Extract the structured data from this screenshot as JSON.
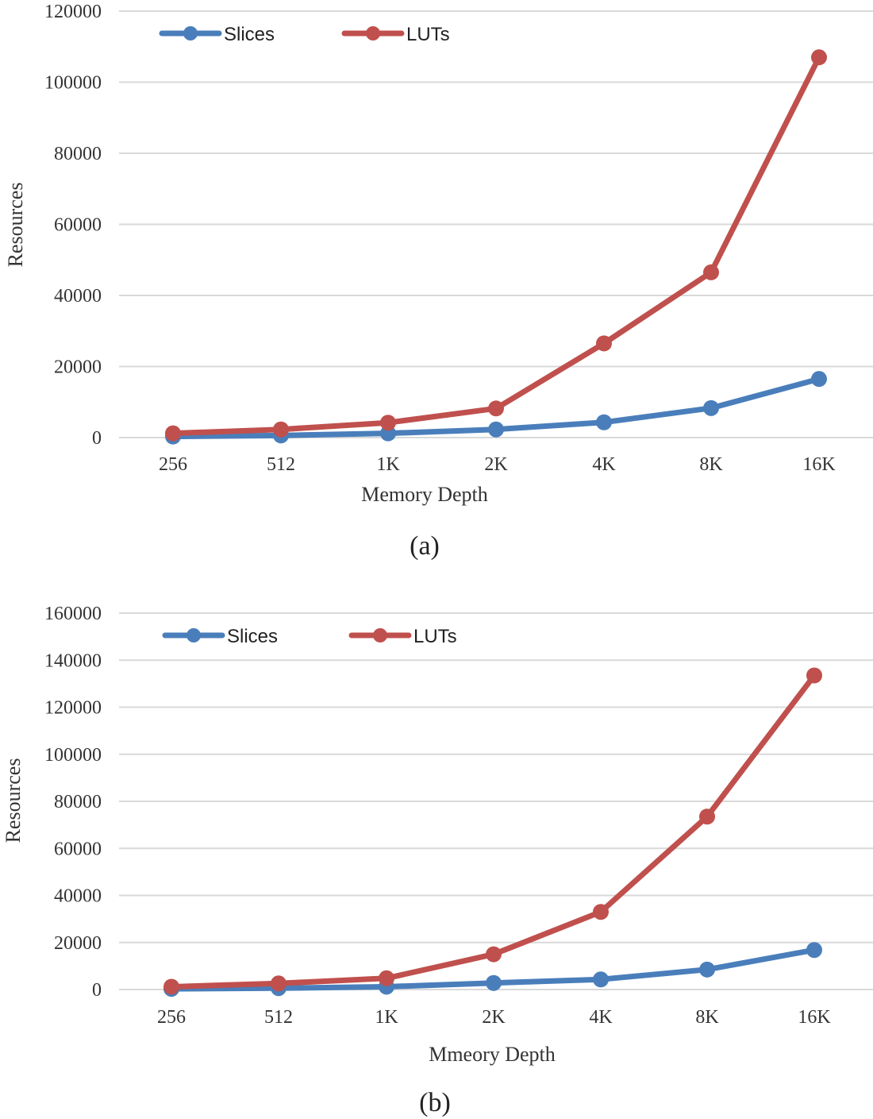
{
  "chart_data": [
    {
      "type": "line",
      "title": "",
      "caption": "(a)",
      "xlabel": "Memory Depth",
      "ylabel": "Resources",
      "categories": [
        "256",
        "512",
        "1K",
        "2K",
        "4K",
        "8K",
        "16K"
      ],
      "ylim": [
        0,
        120000
      ],
      "yticks": [
        "0",
        "20000",
        "40000",
        "60000",
        "80000",
        "100000",
        "120000"
      ],
      "legend_position": "top-left",
      "grid": true,
      "series": [
        {
          "name": "Slices",
          "color": "#4a7ebb",
          "values": [
            300,
            600,
            1200,
            2300,
            4300,
            8300,
            16500
          ]
        },
        {
          "name": "LUTs",
          "color": "#c0504d",
          "values": [
            1200,
            2300,
            4200,
            8200,
            26500,
            46500,
            107000
          ]
        }
      ]
    },
    {
      "type": "line",
      "title": "",
      "caption": "(b)",
      "xlabel": "Mmeory Depth",
      "ylabel": "Resources",
      "categories": [
        "256",
        "512",
        "1K",
        "2K",
        "4K",
        "8K",
        "16K"
      ],
      "ylim": [
        0,
        160000
      ],
      "yticks": [
        "0",
        "20000",
        "40000",
        "60000",
        "80000",
        "100000",
        "120000",
        "140000",
        "160000"
      ],
      "legend_position": "top-left",
      "grid": true,
      "series": [
        {
          "name": "Slices",
          "color": "#4a7ebb",
          "values": [
            300,
            600,
            1200,
            2800,
            4300,
            8500,
            16800
          ]
        },
        {
          "name": "LUTs",
          "color": "#c0504d",
          "values": [
            1200,
            2600,
            4800,
            15000,
            33000,
            73500,
            133500
          ]
        }
      ]
    }
  ]
}
